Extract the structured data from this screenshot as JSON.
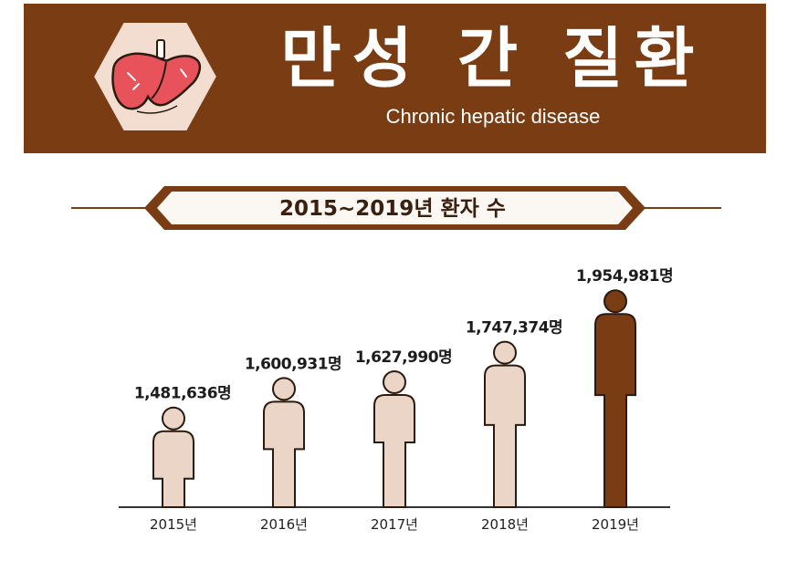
{
  "header": {
    "title": "만성 간 질환",
    "subtitle": "Chronic hepatic disease",
    "icon": "liver-icon"
  },
  "ribbon": {
    "label": "2015~2019년 환자 수"
  },
  "colors": {
    "brand": "#7a3c12",
    "figure_normal": "#ead5c7",
    "figure_highlight": "#7a3c12",
    "outline": "#2b1a10",
    "liver": "#e8525a"
  },
  "chart_data": {
    "type": "bar",
    "categories": [
      "2015년",
      "2016년",
      "2017년",
      "2018년",
      "2019년"
    ],
    "values": [
      1481636,
      1600931,
      1627990,
      1747374,
      1954981
    ],
    "value_labels": [
      "1,481,636명",
      "1,600,931명",
      "1,627,990명",
      "1,747,374명",
      "1,954,981명"
    ],
    "highlight_index": 4,
    "title": "",
    "xlabel": "",
    "ylabel": "",
    "grid": false,
    "legend": "none"
  }
}
